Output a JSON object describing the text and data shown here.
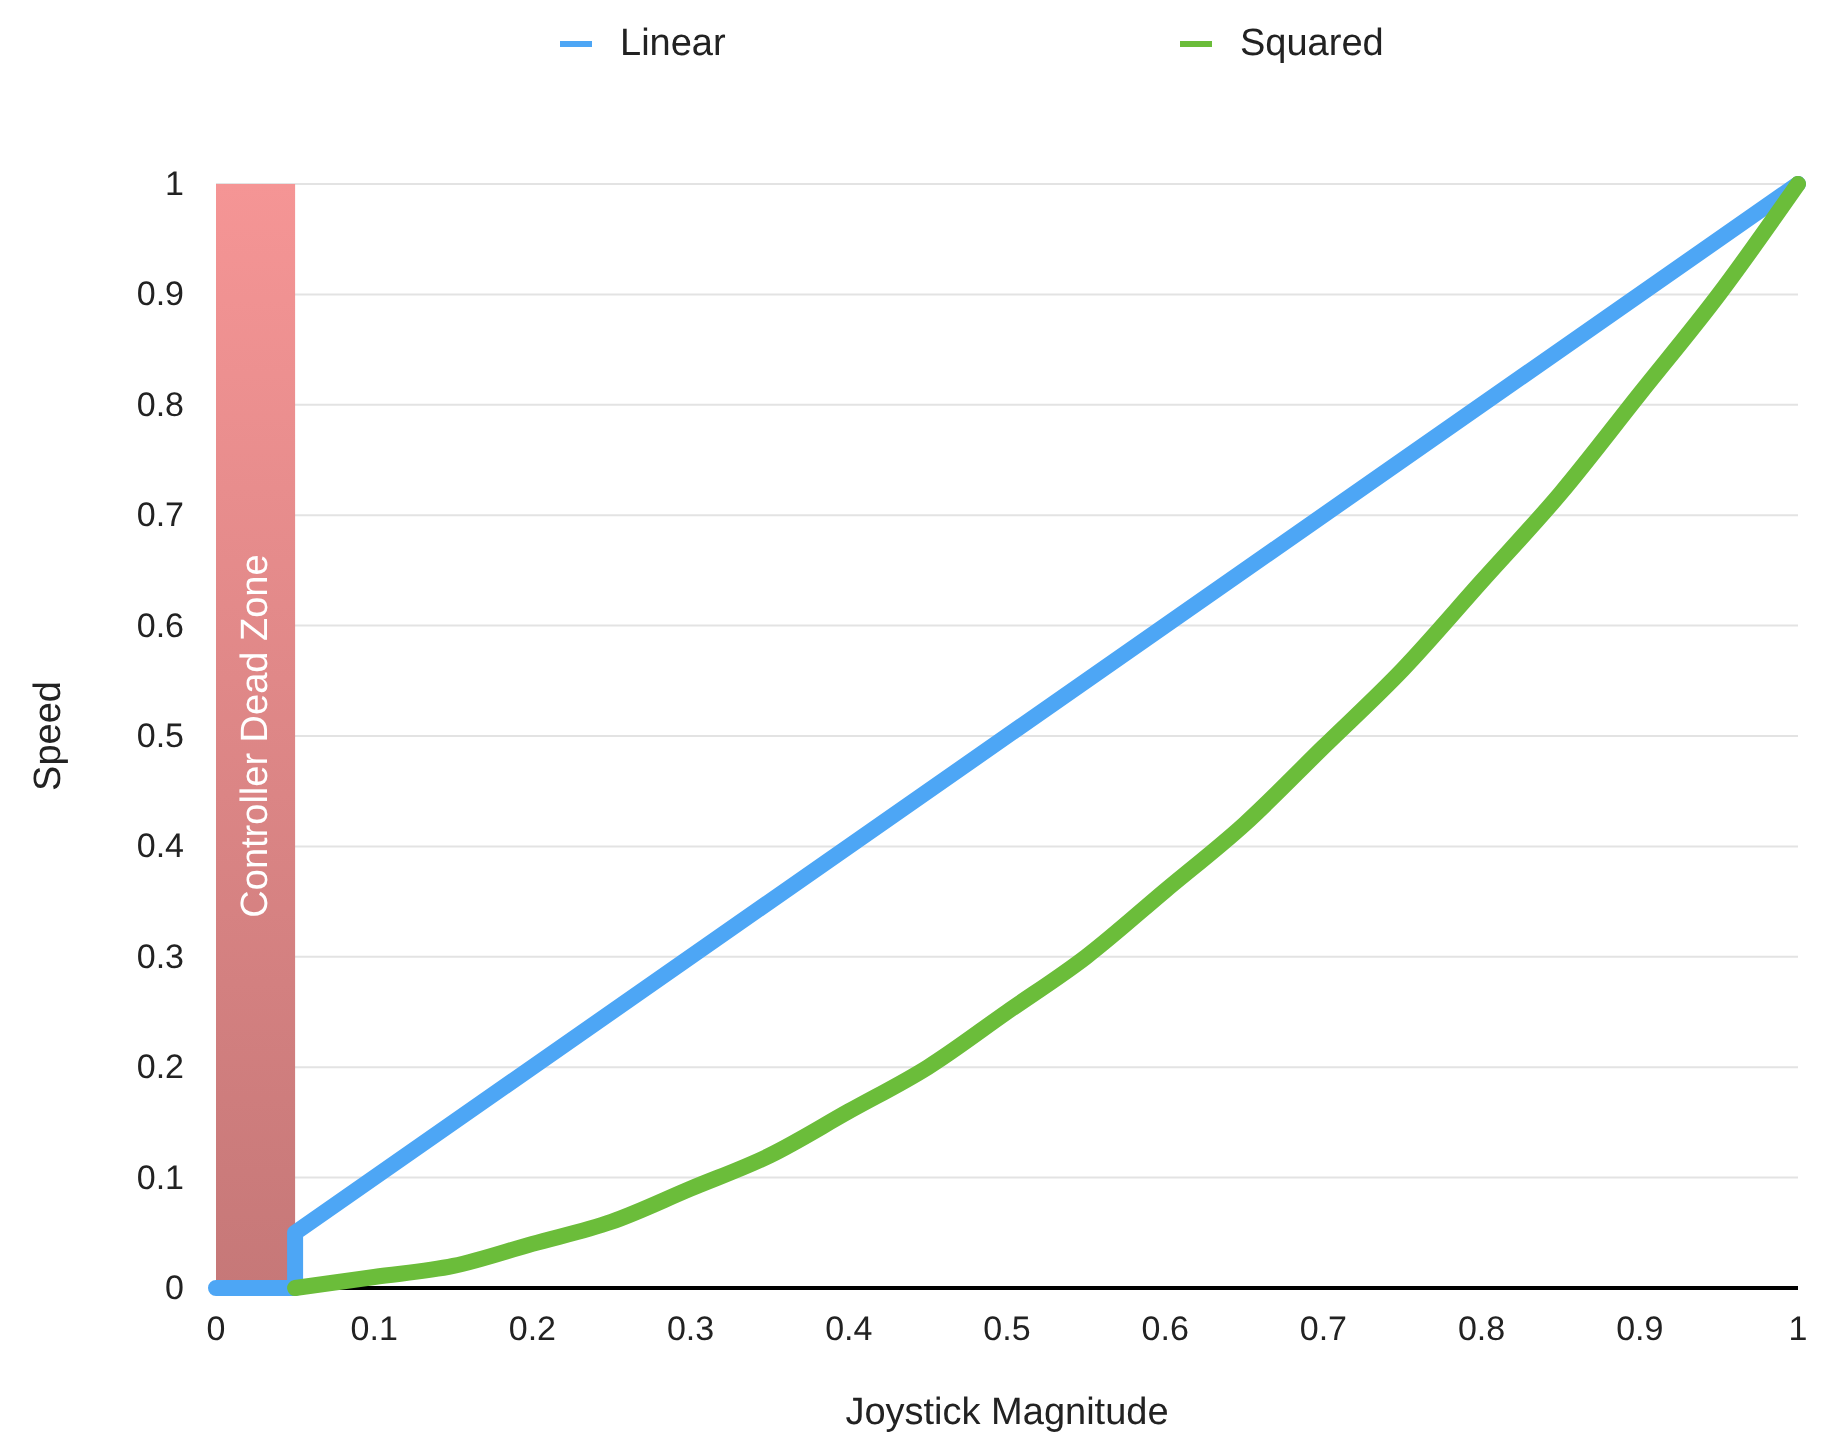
{
  "chart_data": {
    "type": "line",
    "xlabel": "Joystick Magnitude",
    "ylabel": "Speed",
    "xlim": [
      0,
      1
    ],
    "xticks": [
      0,
      0.1,
      0.2,
      0.3,
      0.4,
      0.5,
      0.6,
      0.7,
      0.8,
      0.9,
      1
    ],
    "ylim": [
      0,
      1
    ],
    "yticks": [
      0,
      0.1,
      0.2,
      0.3,
      0.4,
      0.5,
      0.6,
      0.7,
      0.8,
      0.9,
      1
    ],
    "grid": "y",
    "legend": "top",
    "line_style": "solid",
    "marker": "none",
    "bands": [
      {
        "axis": "x",
        "from": 0,
        "to": 0.05,
        "label": "Controller Dead Zone",
        "color": "#f59595"
      }
    ],
    "series": [
      {
        "name": "Linear",
        "color": "#4da6f5",
        "x": [
          0,
          0.05,
          0.05,
          1
        ],
        "values": [
          0,
          0,
          0.05,
          1
        ]
      },
      {
        "name": "Squared",
        "color": "#6bbd3a",
        "x": [
          0.05,
          0.1,
          0.15,
          0.2,
          0.25,
          0.3,
          0.35,
          0.4,
          0.45,
          0.5,
          0.55,
          0.6,
          0.65,
          0.7,
          0.75,
          0.8,
          0.85,
          0.9,
          0.95,
          1
        ],
        "values": [
          0,
          0.01,
          0.02,
          0.04,
          0.06,
          0.09,
          0.12,
          0.16,
          0.2,
          0.25,
          0.3,
          0.36,
          0.42,
          0.49,
          0.56,
          0.64,
          0.72,
          0.81,
          0.9,
          1
        ]
      }
    ]
  }
}
